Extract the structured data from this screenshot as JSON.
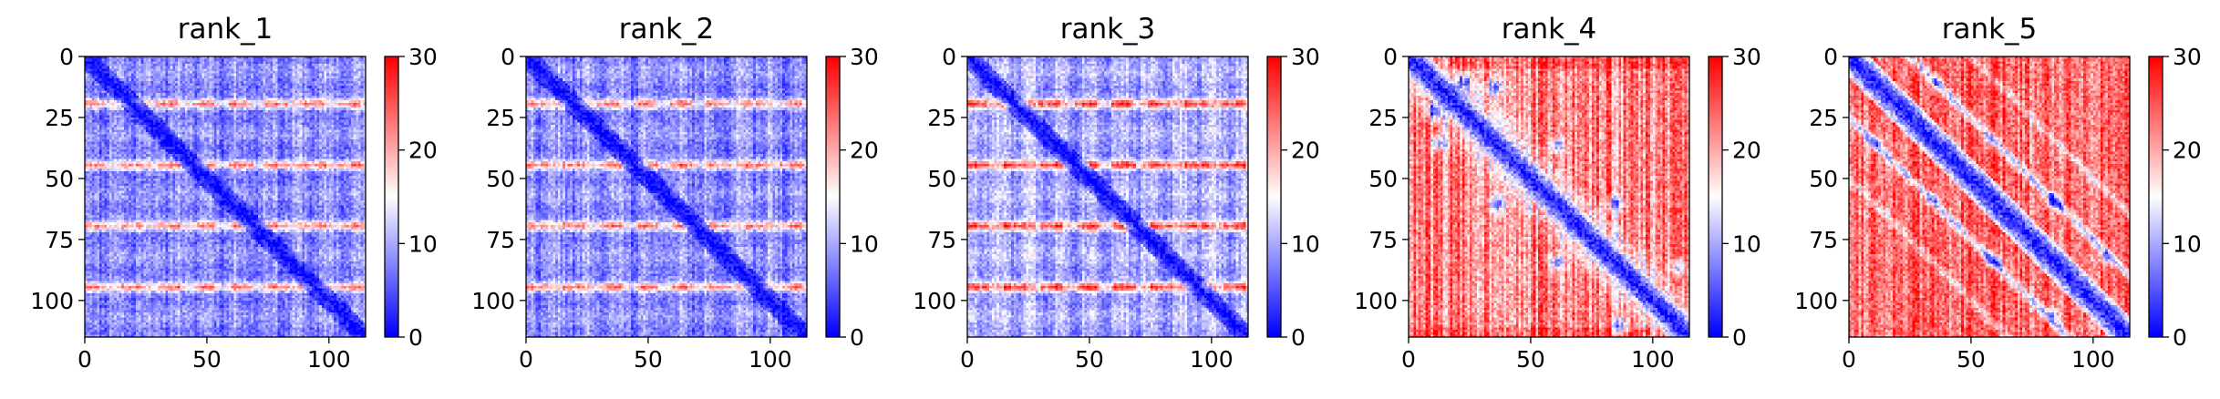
{
  "chart_data": [
    {
      "type": "heatmap",
      "title": "rank_1",
      "pattern": "stripes",
      "seed": 11,
      "xlim": [
        0,
        115
      ],
      "ylim": [
        0,
        115
      ],
      "xticks": [
        0,
        50,
        100
      ],
      "yticks": [
        0,
        25,
        50,
        75,
        100
      ],
      "colorbar": {
        "min": 0,
        "max": 30,
        "ticks": [
          0,
          10,
          20,
          30
        ],
        "colors": [
          "#0000ff",
          "#ffffff",
          "#ff0000"
        ]
      }
    },
    {
      "type": "heatmap",
      "title": "rank_2",
      "pattern": "stripes",
      "seed": 22,
      "xlim": [
        0,
        115
      ],
      "ylim": [
        0,
        115
      ],
      "xticks": [
        0,
        50,
        100
      ],
      "yticks": [
        0,
        25,
        50,
        75,
        100
      ],
      "colorbar": {
        "min": 0,
        "max": 30,
        "ticks": [
          0,
          10,
          20,
          30
        ],
        "colors": [
          "#0000ff",
          "#ffffff",
          "#ff0000"
        ]
      }
    },
    {
      "type": "heatmap",
      "title": "rank_3",
      "pattern": "stripes_strong",
      "seed": 33,
      "xlim": [
        0,
        115
      ],
      "ylim": [
        0,
        115
      ],
      "xticks": [
        0,
        50,
        100
      ],
      "yticks": [
        0,
        25,
        50,
        75,
        100
      ],
      "colorbar": {
        "min": 0,
        "max": 30,
        "ticks": [
          0,
          10,
          20,
          30
        ],
        "colors": [
          "#0000ff",
          "#ffffff",
          "#ff0000"
        ]
      }
    },
    {
      "type": "heatmap",
      "title": "rank_4",
      "pattern": "diagonal_red",
      "seed": 44,
      "xlim": [
        0,
        115
      ],
      "ylim": [
        0,
        115
      ],
      "xticks": [
        0,
        50,
        100
      ],
      "yticks": [
        0,
        25,
        50,
        75,
        100
      ],
      "colorbar": {
        "min": 0,
        "max": 30,
        "ticks": [
          0,
          10,
          20,
          30
        ],
        "colors": [
          "#0000ff",
          "#ffffff",
          "#ff0000"
        ]
      }
    },
    {
      "type": "heatmap",
      "title": "rank_5",
      "pattern": "multi_diagonal_red",
      "seed": 55,
      "xlim": [
        0,
        115
      ],
      "ylim": [
        0,
        115
      ],
      "xticks": [
        0,
        50,
        100
      ],
      "yticks": [
        0,
        25,
        50,
        75,
        100
      ],
      "colorbar": {
        "min": 0,
        "max": 30,
        "ticks": [
          0,
          10,
          20,
          30
        ],
        "colors": [
          "#0000ff",
          "#ffffff",
          "#ff0000"
        ]
      }
    }
  ]
}
